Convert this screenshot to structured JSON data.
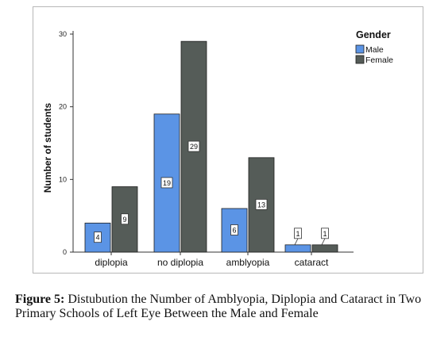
{
  "chart_data": {
    "type": "bar",
    "categories": [
      "diplopia",
      "no diplopia",
      "amblyopia",
      "cataract"
    ],
    "series": [
      {
        "name": "Male",
        "values": [
          4,
          19,
          6,
          1
        ],
        "color": "#5b94e5"
      },
      {
        "name": "Female",
        "values": [
          9,
          29,
          13,
          1
        ],
        "color": "#555c58"
      }
    ],
    "ylabel": "Number of students",
    "xlabel": "",
    "ylim": [
      0,
      30
    ],
    "yticks": [
      0,
      10,
      20,
      30
    ],
    "legend": {
      "title": "Gender",
      "placement": "top-right"
    },
    "grid": false,
    "data_labels": true
  },
  "caption": {
    "label": "Figure 5:",
    "text": "Distubution the Number of Amblyopia, Diplopia and Cataract in Two Primary Schools of Left Eye Between the Male and Female"
  }
}
